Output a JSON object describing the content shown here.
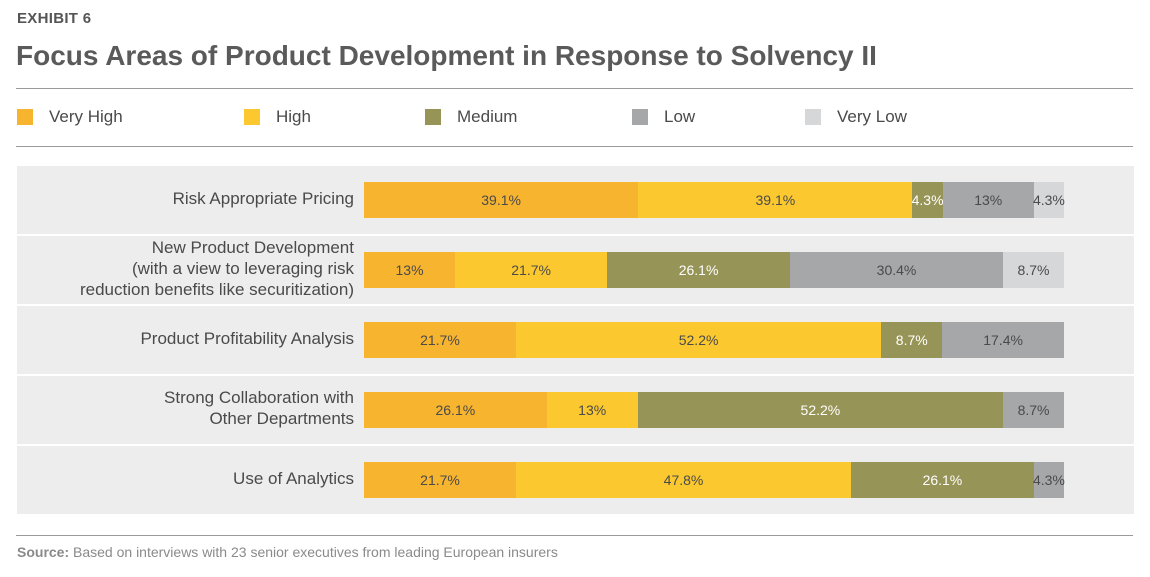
{
  "exhibit_label": "EXHIBIT 6",
  "source_prefix": "Source:",
  "source_text": "Based on interviews with 23 senior executives from leading European insurers",
  "chart_data": {
    "type": "bar",
    "orientation": "horizontal",
    "stacked": true,
    "title": "Focus Areas of Product Development in Response to Solvency II",
    "legend_placement": "top",
    "categories": [
      [
        "Risk Appropriate Pricing"
      ],
      [
        "New Product Development",
        "(with a view to leveraging risk",
        "reduction benefits like securitization)"
      ],
      [
        "Product Profitability Analysis"
      ],
      [
        "Strong Collaboration with",
        "Other Departments"
      ],
      [
        "Use of Analytics"
      ]
    ],
    "series": [
      {
        "name": "Very High",
        "color": "#f6b42f",
        "text_color": "#4a4a4a",
        "values": [
          39.1,
          13,
          21.7,
          26.1,
          21.7
        ],
        "labels": [
          "39.1%",
          "13%",
          "21.7%",
          "26.1%",
          "21.7%"
        ]
      },
      {
        "name": "High",
        "color": "#fbc92f",
        "text_color": "#4a4a4a",
        "values": [
          39.1,
          21.7,
          52.2,
          13,
          47.8
        ],
        "labels": [
          "39.1%",
          "21.7%",
          "52.2%",
          "13%",
          "47.8%"
        ]
      },
      {
        "name": "Medium",
        "color": "#979457",
        "text_color": "#ffffff",
        "values": [
          4.3,
          26.1,
          8.7,
          52.2,
          26.1
        ],
        "labels": [
          "4.3%",
          "26.1%",
          "8.7%",
          "52.2%",
          "26.1%"
        ]
      },
      {
        "name": "Low",
        "color": "#a6a7a9",
        "text_color": "#4a4a4a",
        "values": [
          13,
          30.4,
          17.4,
          8.7,
          4.3
        ],
        "labels": [
          "13%",
          "30.4%",
          "17.4%",
          "8.7%",
          "4.3%"
        ]
      },
      {
        "name": "Very Low",
        "color": "#d6d7d8",
        "text_color": "#4a4a4a",
        "values": [
          4.3,
          8.7,
          0,
          0,
          0
        ],
        "labels": [
          "4.3%",
          "8.7%",
          "",
          "",
          ""
        ]
      }
    ],
    "xlim": [
      0,
      100
    ],
    "grid": false
  }
}
